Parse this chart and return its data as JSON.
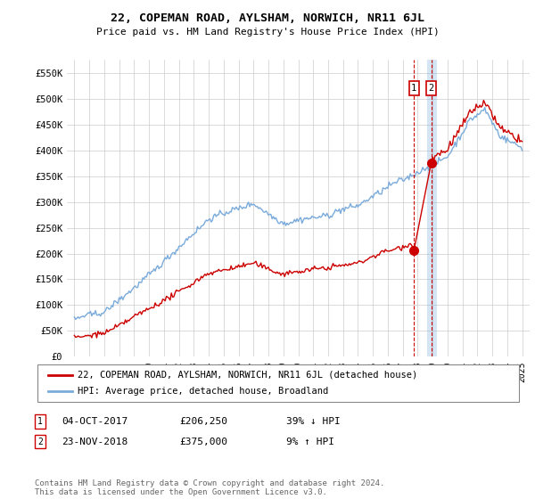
{
  "title": "22, COPEMAN ROAD, AYLSHAM, NORWICH, NR11 6JL",
  "subtitle": "Price paid vs. HM Land Registry's House Price Index (HPI)",
  "legend_line1": "22, COPEMAN ROAD, AYLSHAM, NORWICH, NR11 6JL (detached house)",
  "legend_line2": "HPI: Average price, detached house, Broadland",
  "annotation1_label": "1",
  "annotation1_date": "04-OCT-2017",
  "annotation1_price": "£206,250",
  "annotation1_hpi": "39% ↓ HPI",
  "annotation2_label": "2",
  "annotation2_date": "23-NOV-2018",
  "annotation2_price": "£375,000",
  "annotation2_hpi": "9% ↑ HPI",
  "footer": "Contains HM Land Registry data © Crown copyright and database right 2024.\nThis data is licensed under the Open Government Licence v3.0.",
  "red_color": "#cc0000",
  "blue_color": "#7aabdb",
  "sale1_x": 2017.75,
  "sale1_y": 206250,
  "sale2_x": 2018.9,
  "sale2_y": 375000,
  "ylim": [
    0,
    575000
  ],
  "xlim_start": 1994.5,
  "xlim_end": 2025.5,
  "yticks": [
    0,
    50000,
    100000,
    150000,
    200000,
    250000,
    300000,
    350000,
    400000,
    450000,
    500000,
    550000
  ],
  "ytick_labels": [
    "£0",
    "£50K",
    "£100K",
    "£150K",
    "£200K",
    "£250K",
    "£300K",
    "£350K",
    "£400K",
    "£450K",
    "£500K",
    "£550K"
  ],
  "xticks": [
    1995,
    1996,
    1997,
    1998,
    1999,
    2000,
    2001,
    2002,
    2003,
    2004,
    2005,
    2006,
    2007,
    2008,
    2009,
    2010,
    2011,
    2012,
    2013,
    2014,
    2015,
    2016,
    2017,
    2018,
    2019,
    2020,
    2021,
    2022,
    2023,
    2024,
    2025
  ]
}
